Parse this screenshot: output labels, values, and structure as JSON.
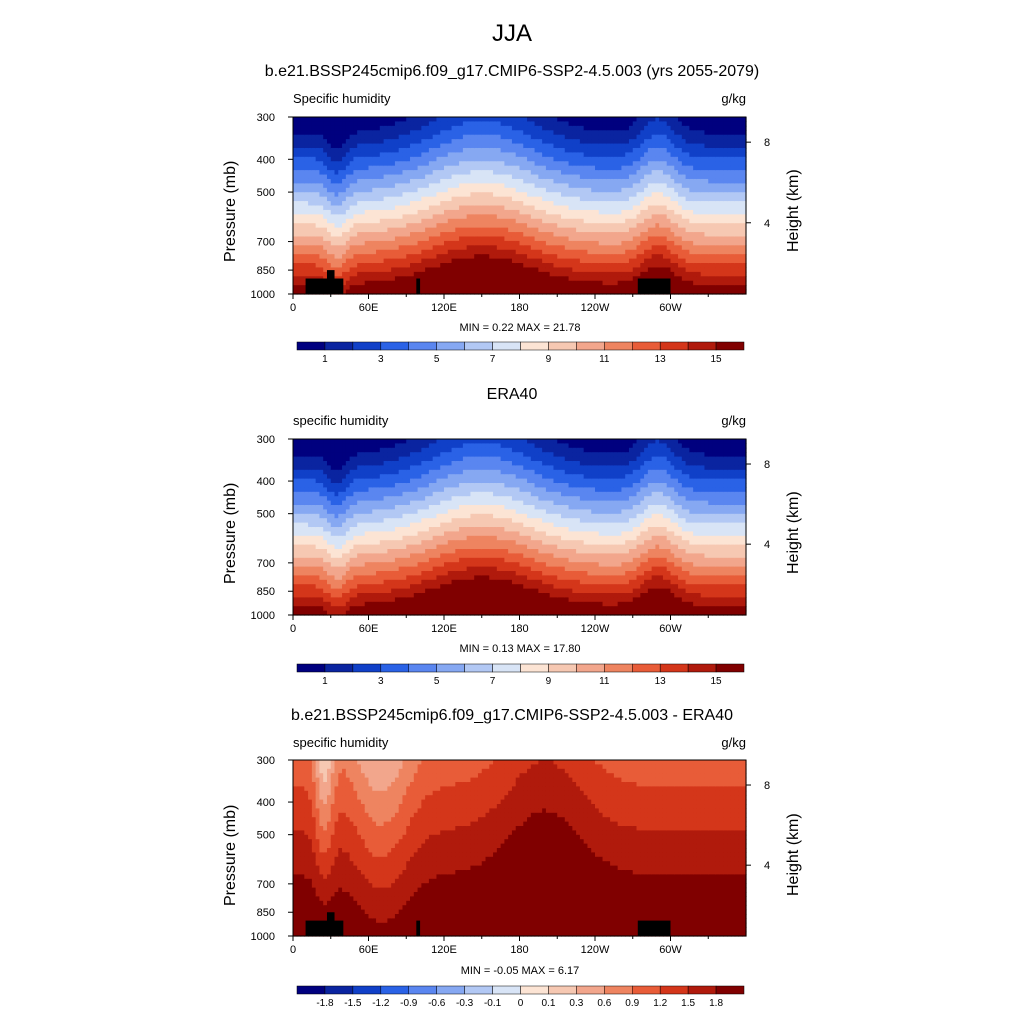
{
  "title": "JJA",
  "panels": [
    {
      "title": "b.e21.BSSP245cmip6.f09_g17.CMIP6-SSP2-4.5.003 (yrs 2055-2079)",
      "left_label": "Specific humidity",
      "right_label": "g/kg",
      "ylabel": "Pressure (mb)",
      "ylabel_right": "Height (km)",
      "stats": "MIN =   0.22  MAX =  21.78",
      "colorbar_labels": [
        "1",
        "3",
        "5",
        "7",
        "9",
        "11",
        "13",
        "15"
      ]
    },
    {
      "title": "ERA40",
      "left_label": "specific humidity",
      "right_label": "g/kg",
      "ylabel": "Pressure (mb)",
      "ylabel_right": "Height (km)",
      "stats": "MIN =   0.13  MAX =  17.80",
      "colorbar_labels": [
        "1",
        "3",
        "5",
        "7",
        "9",
        "11",
        "13",
        "15"
      ]
    },
    {
      "title": "b.e21.BSSP245cmip6.f09_g17.CMIP6-SSP2-4.5.003 - ERA40",
      "left_label": "specific humidity",
      "right_label": "g/kg",
      "ylabel": "Pressure (mb)",
      "ylabel_right": "Height (km)",
      "stats": "MIN =  -0.05  MAX =   6.17",
      "colorbar_labels": [
        "-1.8",
        "-1.5",
        "-1.2",
        "-0.9",
        "-0.6",
        "-0.3",
        "-0.1",
        "0",
        "0.1",
        "0.3",
        "0.6",
        "0.9",
        "1.2",
        "1.5",
        "1.8"
      ]
    }
  ],
  "axes": {
    "x_ticks": [
      "0",
      "60E",
      "120E",
      "180",
      "120W",
      "60W"
    ],
    "y_ticks": [
      "300",
      "400",
      "500",
      "700",
      "850",
      "1000"
    ],
    "y_right_ticks": [
      "8",
      "4"
    ]
  },
  "colors": {
    "sequential": [
      "#00007f",
      "#0a24a0",
      "#1040c8",
      "#2a62e6",
      "#5a86f0",
      "#86a8f2",
      "#b2c8f4",
      "#d8e4f6",
      "#fce4d4",
      "#f6c8b2",
      "#f2a68c",
      "#ee8460",
      "#e85c38",
      "#d4361a",
      "#b01a0c",
      "#800000"
    ],
    "difference": [
      "#00007f",
      "#0a24a0",
      "#1040c8",
      "#2a62e6",
      "#5a86f0",
      "#86a8f2",
      "#b2c8f4",
      "#d8e4f6",
      "#fce4d4",
      "#f6c8b2",
      "#f2a68c",
      "#ee8460",
      "#e85c38",
      "#d4361a",
      "#b01a0c",
      "#800000"
    ],
    "terrain": "#000000"
  },
  "chart_data": [
    {
      "type": "heatmap",
      "xlabel": "",
      "ylabel": "Pressure (mb)",
      "x_ticks": [
        "0",
        "60E",
        "120E",
        "180",
        "120W",
        "60W"
      ],
      "x_range_deg": [
        0,
        360
      ],
      "ylim_mb": [
        300,
        1000
      ],
      "levels": [
        1,
        3,
        5,
        7,
        9,
        11,
        13,
        15
      ],
      "units": "g/kg",
      "min": 0.22,
      "max": 21.78
    },
    {
      "type": "heatmap",
      "xlabel": "",
      "ylabel": "Pressure (mb)",
      "x_ticks": [
        "0",
        "60E",
        "120E",
        "180",
        "120W",
        "60W"
      ],
      "x_range_deg": [
        0,
        360
      ],
      "ylim_mb": [
        300,
        1000
      ],
      "levels": [
        1,
        3,
        5,
        7,
        9,
        11,
        13,
        15
      ],
      "units": "g/kg",
      "min": 0.13,
      "max": 17.8
    },
    {
      "type": "heatmap",
      "xlabel": "",
      "ylabel": "Pressure (mb)",
      "x_ticks": [
        "0",
        "60E",
        "120E",
        "180",
        "120W",
        "60W"
      ],
      "x_range_deg": [
        0,
        360
      ],
      "ylim_mb": [
        300,
        1000
      ],
      "levels": [
        -1.8,
        -1.5,
        -1.2,
        -0.9,
        -0.6,
        -0.3,
        -0.1,
        0,
        0.1,
        0.3,
        0.6,
        0.9,
        1.2,
        1.5,
        1.8
      ],
      "units": "g/kg",
      "min": -0.05,
      "max": 6.17
    }
  ]
}
